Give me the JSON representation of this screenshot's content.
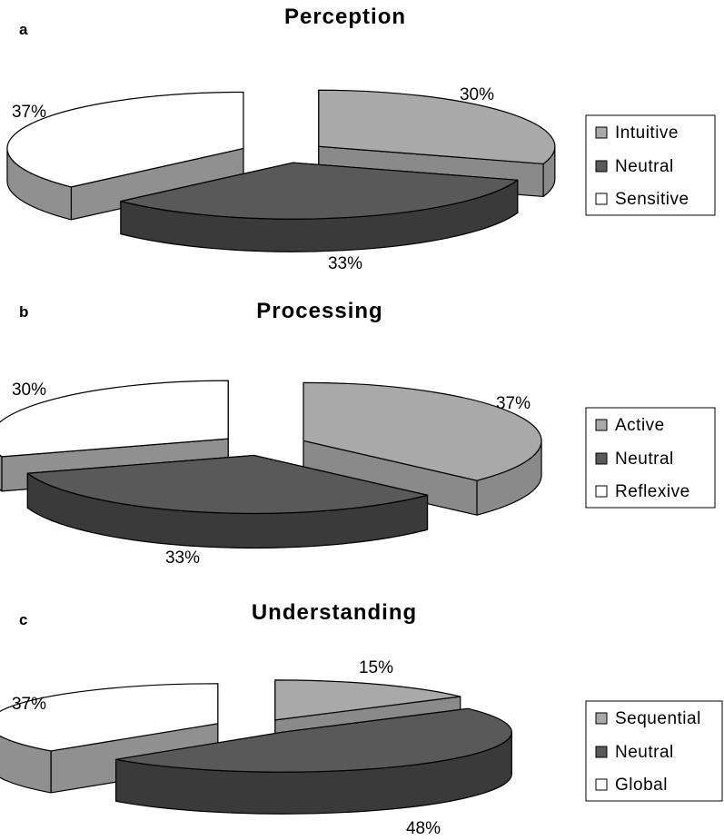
{
  "colors": {
    "light_top": "#a9a9a9",
    "light_side": "#8a8a8a",
    "dark_top": "#595959",
    "dark_side": "#3a3a3a",
    "white_top": "#ffffff",
    "white_side": "#909090",
    "outline": "#000000"
  },
  "chart_data": [
    {
      "type": "pie",
      "panel": "a",
      "title": "Perception",
      "slices": [
        {
          "label": "Intuitive",
          "value": 30,
          "value_label": "30%",
          "color": "light"
        },
        {
          "label": "Neutral",
          "value": 33,
          "value_label": "33%",
          "color": "dark"
        },
        {
          "label": "Sensitive",
          "value": 37,
          "value_label": "37%",
          "color": "white"
        }
      ],
      "legend": [
        "Intuitive",
        "Neutral",
        "Sensitive"
      ],
      "legend_position": "right",
      "style": "3D exploded pie"
    },
    {
      "type": "pie",
      "panel": "b",
      "title": "Processing",
      "slices": [
        {
          "label": "Active",
          "value": 37,
          "value_label": "37%",
          "color": "light"
        },
        {
          "label": "Neutral",
          "value": 33,
          "value_label": "33%",
          "color": "dark"
        },
        {
          "label": "Reflexive",
          "value": 30,
          "value_label": "30%",
          "color": "white"
        }
      ],
      "legend": [
        "Active",
        "Neutral",
        "Reflexive"
      ],
      "legend_position": "right",
      "style": "3D exploded pie"
    },
    {
      "type": "pie",
      "panel": "c",
      "title": "Understanding",
      "slices": [
        {
          "label": "Sequential",
          "value": 15,
          "value_label": "15%",
          "color": "light"
        },
        {
          "label": "Neutral",
          "value": 48,
          "value_label": "48%",
          "color": "dark"
        },
        {
          "label": "Global",
          "value": 37,
          "value_label": "37%",
          "color": "white"
        }
      ],
      "legend": [
        "Sequential",
        "Neutral",
        "Global"
      ],
      "legend_position": "right",
      "style": "3D exploded pie"
    }
  ]
}
